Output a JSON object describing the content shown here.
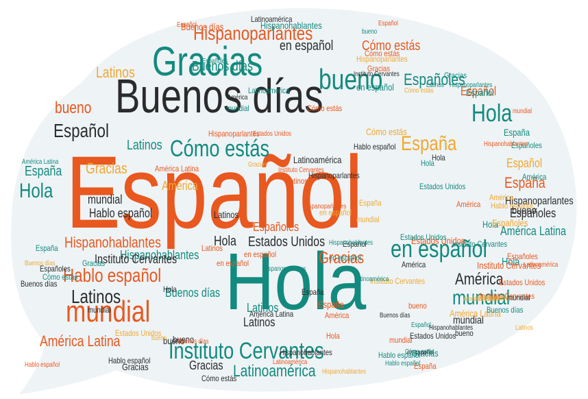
{
  "colors": {
    "bubble": "#eef3f6",
    "orange": "#e8581f",
    "teal": "#138a7e",
    "dark": "#2b2b2b",
    "yellow": "#f0a830"
  },
  "words": [
    {
      "t": "Español",
      "c": "orange"
    },
    {
      "t": "Hola",
      "c": "teal"
    },
    {
      "t": "Buenos días",
      "c": "dark"
    },
    {
      "t": "Gracias",
      "c": "teal"
    },
    {
      "t": "bueno",
      "c": "teal"
    },
    {
      "t": "Hispanoparlantes",
      "c": "orange"
    },
    {
      "t": "Cómo estás",
      "c": "teal"
    },
    {
      "t": "España",
      "c": "yellow"
    },
    {
      "t": "Instituto Cervantes",
      "c": "teal"
    },
    {
      "t": "mundial",
      "c": "orange"
    },
    {
      "t": "en español",
      "c": "teal"
    },
    {
      "t": "Hablo español",
      "c": "orange"
    },
    {
      "t": "Latinos",
      "c": "dark"
    },
    {
      "t": "Hispanohablantes",
      "c": "orange"
    },
    {
      "t": "Latinoamérica",
      "c": "teal"
    },
    {
      "t": "América Latina",
      "c": "orange"
    },
    {
      "t": "Españoles",
      "c": "teal"
    },
    {
      "t": "Hola",
      "c": "teal"
    },
    {
      "t": "Español",
      "c": "dark"
    },
    {
      "t": "América",
      "c": "dark"
    },
    {
      "t": "mundial",
      "c": "teal"
    },
    {
      "t": "Estados Unidos",
      "c": "dark"
    },
    {
      "t": "Gracias",
      "c": "orange"
    },
    {
      "t": "España",
      "c": "orange"
    },
    {
      "t": "Cómo estás",
      "c": "orange"
    },
    {
      "t": "Buenos días",
      "c": "teal"
    },
    {
      "t": "en español",
      "c": "dark"
    },
    {
      "t": "Latinos",
      "c": "yellow"
    },
    {
      "t": "Hola",
      "c": "teal"
    },
    {
      "t": "Español",
      "c": "yellow"
    },
    {
      "t": "bueno",
      "c": "orange"
    },
    {
      "t": "Gracias",
      "c": "yellow"
    },
    {
      "t": "Hispanohablantes",
      "c": "teal"
    },
    {
      "t": "Latinos",
      "c": "teal"
    },
    {
      "t": "España",
      "c": "teal"
    },
    {
      "t": "América",
      "c": "yellow"
    },
    {
      "t": "Hablo español",
      "c": "dark"
    },
    {
      "t": "mundial",
      "c": "dark"
    },
    {
      "t": "Instituto Cervantes",
      "c": "dark"
    },
    {
      "t": "Buenos días",
      "c": "teal"
    },
    {
      "t": "Hola",
      "c": "dark"
    },
    {
      "t": "Latinos",
      "c": "dark"
    },
    {
      "t": "Hispanoparlantes",
      "c": "dark"
    },
    {
      "t": "América Latina",
      "c": "teal"
    },
    {
      "t": "Españoles",
      "c": "dark"
    },
    {
      "t": "Estados Unidos",
      "c": "orange"
    },
    {
      "t": "bueno",
      "c": "dark"
    },
    {
      "t": "Gracias",
      "c": "teal"
    },
    {
      "t": "Latinoamérica",
      "c": "dark"
    },
    {
      "t": "Cómo estás",
      "c": "yellow"
    },
    {
      "t": "España",
      "c": "orange"
    },
    {
      "t": "mundial",
      "c": "dark"
    },
    {
      "t": "Hola",
      "c": "teal"
    },
    {
      "t": "en español",
      "c": "orange"
    },
    {
      "t": "Hablo español",
      "c": "dark"
    },
    {
      "t": "América",
      "c": "dark"
    },
    {
      "t": "Latinos",
      "c": "teal"
    },
    {
      "t": "Español",
      "c": "orange"
    },
    {
      "t": "Gracias",
      "c": "dark"
    },
    {
      "t": "Españoles",
      "c": "orange"
    },
    {
      "t": "bueno",
      "c": "dark"
    },
    {
      "t": "mundial",
      "c": "orange"
    },
    {
      "t": "Estados Unidos",
      "c": "teal"
    },
    {
      "t": "Hispanohablantes",
      "c": "dark"
    },
    {
      "t": "Hispanoparlantes",
      "c": "orange"
    },
    {
      "t": "Instituto Cervantes",
      "c": "orange"
    },
    {
      "t": "América Latina",
      "c": "yellow"
    },
    {
      "t": "Latinoamérica",
      "c": "orange"
    },
    {
      "t": "Buenos días",
      "c": "orange"
    },
    {
      "t": "Cómo estás",
      "c": "orange"
    },
    {
      "t": "España",
      "c": "teal"
    },
    {
      "t": "Hola",
      "c": "teal"
    },
    {
      "t": "en español",
      "c": "teal"
    },
    {
      "t": "Hablo español",
      "c": "teal"
    },
    {
      "t": "Latinos",
      "c": "dark"
    },
    {
      "t": "mundial",
      "c": "dark"
    },
    {
      "t": "Gracias",
      "c": "dark"
    },
    {
      "t": "bueno",
      "c": "dark"
    },
    {
      "t": "Español",
      "c": "teal"
    },
    {
      "t": "Españoles",
      "c": "yellow"
    },
    {
      "t": "América",
      "c": "orange"
    },
    {
      "t": "Estados Unidos",
      "c": "orange"
    },
    {
      "t": "Instituto Cervantes",
      "c": "teal"
    },
    {
      "t": "Hispanoparlantes",
      "c": "dark"
    },
    {
      "t": "Hispanohablantes",
      "c": "teal"
    },
    {
      "t": "Latinoamérica",
      "c": "teal"
    },
    {
      "t": "Buenos días",
      "c": "dark"
    },
    {
      "t": "Cómo estás",
      "c": "teal"
    },
    {
      "t": "América Latina",
      "c": "orange"
    },
    {
      "t": "España",
      "c": "yellow"
    },
    {
      "t": "Hola",
      "c": "dark"
    },
    {
      "t": "en español",
      "c": "yellow"
    },
    {
      "t": "Hablo español",
      "c": "orange"
    },
    {
      "t": "Latinos",
      "c": "orange"
    },
    {
      "t": "mundial",
      "c": "yellow"
    },
    {
      "t": "Gracias",
      "c": "teal"
    },
    {
      "t": "bueno",
      "c": "orange"
    },
    {
      "t": "Español",
      "c": "dark"
    },
    {
      "t": "Españoles",
      "c": "teal"
    },
    {
      "t": "América",
      "c": "teal"
    },
    {
      "t": "Estados Unidos",
      "c": "dark"
    },
    {
      "t": "Instituto Cervantes",
      "c": "orange"
    },
    {
      "t": "Hispanoparlantes",
      "c": "teal"
    },
    {
      "t": "Hispanohablantes",
      "c": "orange"
    },
    {
      "t": "Latinoamérica",
      "c": "dark"
    },
    {
      "t": "Buenos días",
      "c": "orange"
    },
    {
      "t": "Cómo estás",
      "c": "yellow"
    },
    {
      "t": "América Latina",
      "c": "teal"
    },
    {
      "t": "España",
      "c": "orange"
    },
    {
      "t": "Hola",
      "c": "teal"
    },
    {
      "t": "en español",
      "c": "dark"
    },
    {
      "t": "Hablo español",
      "c": "yellow"
    },
    {
      "t": "Latinos",
      "c": "teal"
    },
    {
      "t": "mundial",
      "c": "orange"
    },
    {
      "t": "Gracias",
      "c": "orange"
    },
    {
      "t": "bueno",
      "c": "teal"
    },
    {
      "t": "Español",
      "c": "orange"
    },
    {
      "t": "Españoles",
      "c": "orange"
    },
    {
      "t": "América",
      "c": "yellow"
    },
    {
      "t": "Estados Unidos",
      "c": "teal"
    },
    {
      "t": "Instituto Cervantes",
      "c": "dark"
    },
    {
      "t": "Hispanoparlantes",
      "c": "yellow"
    },
    {
      "t": "Hispanohablantes",
      "c": "dark"
    },
    {
      "t": "Latinoamérica",
      "c": "orange"
    },
    {
      "t": "Buenos días",
      "c": "yellow"
    },
    {
      "t": "Cómo estás",
      "c": "dark"
    },
    {
      "t": "América Latina",
      "c": "dark"
    },
    {
      "t": "España",
      "c": "dark"
    },
    {
      "t": "Hola",
      "c": "orange"
    },
    {
      "t": "en español",
      "c": "orange"
    },
    {
      "t": "Hablo español",
      "c": "teal"
    },
    {
      "t": "Latinos",
      "c": "orange"
    },
    {
      "t": "mundial",
      "c": "teal"
    },
    {
      "t": "Gracias",
      "c": "yellow"
    },
    {
      "t": "bueno",
      "c": "dark"
    },
    {
      "t": "Español",
      "c": "teal"
    },
    {
      "t": "Españoles",
      "c": "dark"
    },
    {
      "t": "América",
      "c": "orange"
    },
    {
      "t": "Estados Unidos",
      "c": "yellow"
    },
    {
      "t": "Instituto Cervantes",
      "c": "yellow"
    },
    {
      "t": "Hispanoparlantes",
      "c": "teal"
    },
    {
      "t": "Hispanohablantes",
      "c": "yellow"
    },
    {
      "t": "Latinoamérica",
      "c": "yellow"
    },
    {
      "t": "Buenos días",
      "c": "teal"
    },
    {
      "t": "Cómo estás",
      "c": "orange"
    },
    {
      "t": "América Latina",
      "c": "yellow"
    },
    {
      "t": "España",
      "c": "teal"
    },
    {
      "t": "Hola",
      "c": "dark"
    },
    {
      "t": "en español",
      "c": "teal"
    },
    {
      "t": "Hablo español",
      "c": "dark"
    },
    {
      "t": "Latinos",
      "c": "yellow"
    },
    {
      "t": "mundial",
      "c": "dark"
    },
    {
      "t": "Gracias",
      "c": "teal"
    },
    {
      "t": "bueno",
      "c": "yellow"
    },
    {
      "t": "Español",
      "c": "orange"
    },
    {
      "t": "Españoles",
      "c": "teal"
    },
    {
      "t": "América",
      "c": "dark"
    },
    {
      "t": "Estados Unidos",
      "c": "orange"
    },
    {
      "t": "Instituto Cervantes",
      "c": "orange"
    },
    {
      "t": "Hispanoparlantes",
      "c": "orange"
    },
    {
      "t": "Hispanohablantes",
      "c": "teal"
    },
    {
      "t": "Latinoamérica",
      "c": "teal"
    },
    {
      "t": "Buenos días",
      "c": "dark"
    },
    {
      "t": "Cómo estás",
      "c": "teal"
    }
  ]
}
